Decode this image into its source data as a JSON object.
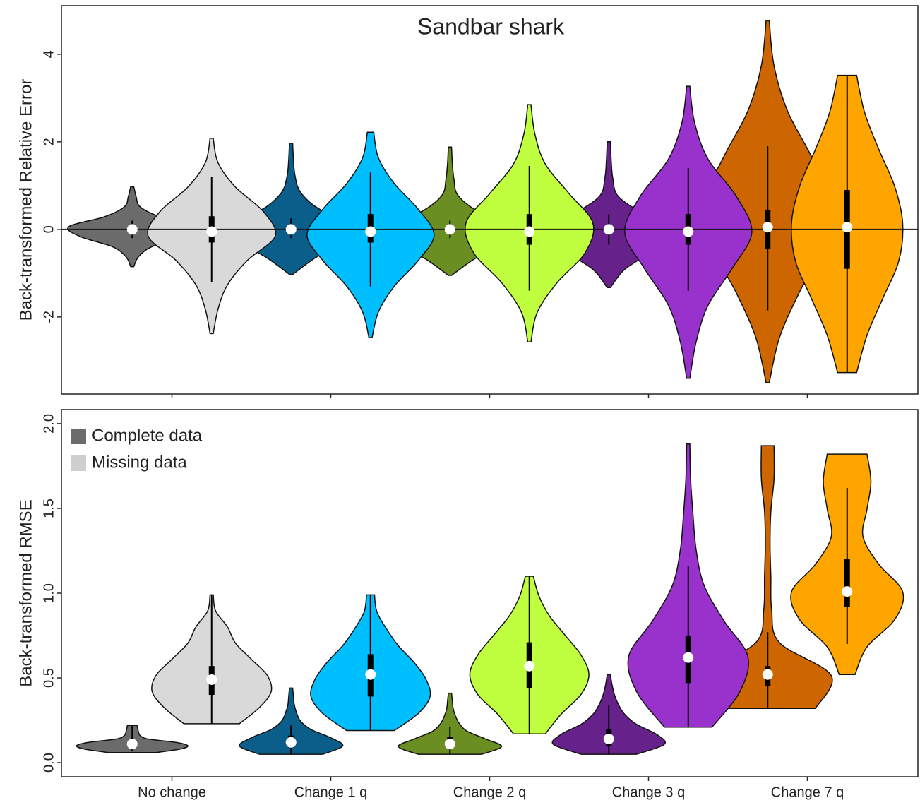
{
  "chart_data": [
    {
      "type": "violin",
      "title": "Sandbar shark",
      "ylabel": "Back-transformed Relative Error",
      "ylim": [
        -3.76,
        5.11
      ],
      "yticks": [
        -2,
        0,
        2,
        4
      ],
      "hline": 0,
      "series": [
        {
          "name": "Complete data",
          "color": "#6b6b6b",
          "colors": [
            "#6b6b6b",
            "#0b5e8a",
            "#6b8e23",
            "#66228a",
            "#cd6600"
          ],
          "violins": [
            {
              "min": -0.85,
              "max": 0.97,
              "q1": -0.05,
              "median": 0,
              "q3": 0.05,
              "whisker": [
                -0.2,
                0.2
              ],
              "density": [
                0.02,
                0.08,
                0.25,
                0.65,
                0.8,
                0.35,
                0.1,
                0.05,
                0.02
              ]
            },
            {
              "min": -1.03,
              "max": 1.97,
              "q1": -0.05,
              "median": 0,
              "q3": 0.05,
              "whisker": [
                -0.2,
                0.25
              ],
              "density": [
                0.02,
                0.3,
                0.65,
                0.8,
                0.35,
                0.12,
                0.05,
                0.03,
                0.02
              ]
            },
            {
              "min": -1.05,
              "max": 1.88,
              "q1": -0.05,
              "median": 0,
              "q3": 0.05,
              "whisker": [
                -0.2,
                0.2
              ],
              "density": [
                0.02,
                0.3,
                0.65,
                0.8,
                0.35,
                0.1,
                0.05,
                0.03,
                0.02
              ]
            },
            {
              "min": -1.33,
              "max": 2.0,
              "q1": -0.05,
              "median": 0,
              "q3": 0.05,
              "whisker": [
                -0.35,
                0.35
              ],
              "density": [
                0.02,
                0.2,
                0.55,
                0.8,
                0.45,
                0.12,
                0.05,
                0.03,
                0.02
              ]
            },
            {
              "min": -3.5,
              "max": 4.77,
              "q1": -0.45,
              "median": 0.05,
              "q3": 0.45,
              "whisker": [
                -1.85,
                1.9
              ],
              "density": [
                0.02,
                0.15,
                0.4,
                0.7,
                0.8,
                0.55,
                0.25,
                0.08,
                0.02
              ]
            }
          ]
        },
        {
          "name": "Missing data",
          "color": "#cfcfcf",
          "colors": [
            "#d9d9d9",
            "#00bfff",
            "#bfff3f",
            "#9932cc",
            "#ffa500"
          ],
          "violins": [
            {
              "min": -2.38,
              "max": 2.08,
              "q1": -0.3,
              "median": -0.05,
              "q3": 0.3,
              "whisker": [
                -1.2,
                1.2
              ],
              "density": [
                0.02,
                0.08,
                0.2,
                0.45,
                0.8,
                0.65,
                0.3,
                0.08,
                0.02
              ]
            },
            {
              "min": -2.47,
              "max": 2.22,
              "q1": -0.3,
              "median": -0.05,
              "q3": 0.35,
              "whisker": [
                -1.3,
                1.3
              ],
              "density": [
                0.02,
                0.1,
                0.3,
                0.6,
                0.8,
                0.6,
                0.3,
                0.1,
                0.04
              ]
            },
            {
              "min": -2.57,
              "max": 2.85,
              "q1": -0.35,
              "median": -0.05,
              "q3": 0.35,
              "whisker": [
                -1.4,
                1.45
              ],
              "density": [
                0.02,
                0.1,
                0.35,
                0.7,
                0.8,
                0.5,
                0.2,
                0.07,
                0.02
              ]
            },
            {
              "min": -3.4,
              "max": 3.27,
              "q1": -0.35,
              "median": -0.05,
              "q3": 0.35,
              "whisker": [
                -1.4,
                1.4
              ],
              "density": [
                0.02,
                0.1,
                0.25,
                0.55,
                0.8,
                0.6,
                0.25,
                0.08,
                0.02
              ]
            },
            {
              "min": -3.27,
              "max": 3.52,
              "q1": -0.9,
              "median": 0.05,
              "q3": 0.9,
              "whisker": [
                -3.27,
                3.52
              ],
              "density": [
                0.12,
                0.25,
                0.45,
                0.65,
                0.7,
                0.6,
                0.4,
                0.22,
                0.12
              ]
            }
          ]
        }
      ]
    },
    {
      "type": "violin",
      "ylabel": "Back-transformed RMSE",
      "categories": [
        "No change",
        "Change 1 q",
        "Change 2 q",
        "Change 3 q",
        "Change 7 q"
      ],
      "ylim": [
        -0.083,
        2.083
      ],
      "yticks": [
        {
          "value": 0,
          "label": "0.0"
        },
        {
          "value": 0.5,
          "label": "0.5"
        },
        {
          "value": 1,
          "label": "1.0"
        },
        {
          "value": 1.5,
          "label": "1.5"
        },
        {
          "value": 2,
          "label": "2.0"
        }
      ],
      "legend": "top-left",
      "series": [
        {
          "name": "Complete data",
          "color": "#6b6b6b",
          "colors": [
            "#6b6b6b",
            "#0b5e8a",
            "#6b8e23",
            "#66228a",
            "#cd6600"
          ],
          "violins": [
            {
              "min": 0.06,
              "max": 0.22,
              "q1": 0.09,
              "median": 0.11,
              "q3": 0.13,
              "whisker": [
                0.07,
                0.22
              ],
              "density": [
                0.3,
                0.6,
                0.7,
                0.55,
                0.2,
                0.1,
                0.08,
                0.07,
                0.06
              ]
            },
            {
              "min": 0.05,
              "max": 0.44,
              "q1": 0.09,
              "median": 0.12,
              "q3": 0.16,
              "whisker": [
                0.05,
                0.22
              ],
              "density": [
                0.4,
                0.65,
                0.5,
                0.25,
                0.12,
                0.07,
                0.04,
                0.03,
                0.02
              ]
            },
            {
              "min": 0.05,
              "max": 0.41,
              "q1": 0.08,
              "median": 0.11,
              "q3": 0.15,
              "whisker": [
                0.05,
                0.21
              ],
              "density": [
                0.4,
                0.65,
                0.45,
                0.22,
                0.12,
                0.07,
                0.04,
                0.03,
                0.02
              ]
            },
            {
              "min": 0.05,
              "max": 0.52,
              "q1": 0.1,
              "median": 0.14,
              "q3": 0.2,
              "whisker": [
                0.05,
                0.34
              ],
              "density": [
                0.35,
                0.7,
                0.6,
                0.35,
                0.2,
                0.12,
                0.07,
                0.04,
                0.02
              ]
            },
            {
              "min": 0.32,
              "max": 1.87,
              "q1": 0.45,
              "median": 0.52,
              "q3": 0.57,
              "whisker": [
                0.32,
                0.77
              ],
              "density": [
                0.6,
                0.8,
                0.15,
                0.05,
                0.04,
                0.03,
                0.04,
                0.08,
                0.08
              ]
            }
          ]
        },
        {
          "name": "Missing data",
          "color": "#cfcfcf",
          "colors": [
            "#d9d9d9",
            "#00bfff",
            "#bfff3f",
            "#9932cc",
            "#ffa500"
          ],
          "violins": [
            {
              "min": 0.23,
              "max": 0.99,
              "q1": 0.4,
              "median": 0.49,
              "q3": 0.57,
              "whisker": [
                0.23,
                0.99
              ],
              "density": [
                0.35,
                0.6,
                0.75,
                0.7,
                0.5,
                0.3,
                0.2,
                0.05,
                0.02
              ]
            },
            {
              "min": 0.19,
              "max": 0.99,
              "q1": 0.39,
              "median": 0.52,
              "q3": 0.64,
              "whisker": [
                0.19,
                0.99
              ],
              "density": [
                0.3,
                0.6,
                0.75,
                0.7,
                0.55,
                0.35,
                0.2,
                0.08,
                0.05
              ]
            },
            {
              "min": 0.17,
              "max": 1.1,
              "q1": 0.44,
              "median": 0.57,
              "q3": 0.71,
              "whisker": [
                0.17,
                1.1
              ],
              "density": [
                0.2,
                0.4,
                0.65,
                0.75,
                0.65,
                0.45,
                0.25,
                0.12,
                0.05
              ]
            },
            {
              "min": 0.21,
              "max": 1.88,
              "q1": 0.47,
              "median": 0.62,
              "q3": 0.75,
              "whisker": [
                0.21,
                1.16
              ],
              "density": [
                0.3,
                0.65,
                0.75,
                0.45,
                0.2,
                0.1,
                0.06,
                0.03,
                0.02
              ]
            },
            {
              "min": 0.52,
              "max": 1.82,
              "q1": 0.92,
              "median": 1.01,
              "q3": 1.2,
              "whisker": [
                0.7,
                1.62
              ],
              "density": [
                0.1,
                0.25,
                0.6,
                0.7,
                0.4,
                0.2,
                0.25,
                0.3,
                0.25
              ]
            }
          ]
        }
      ]
    }
  ]
}
